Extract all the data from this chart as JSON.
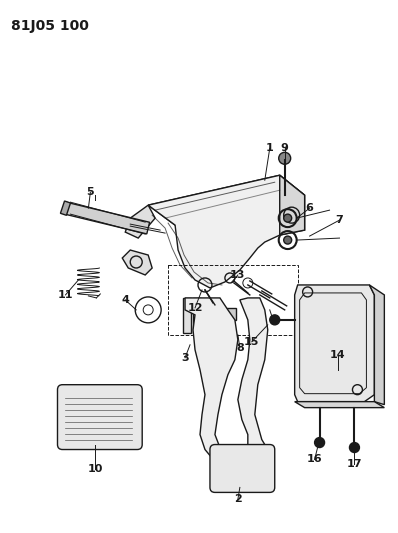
{
  "title": "81J05 100",
  "background_color": "#ffffff",
  "line_color": "#1a1a1a",
  "title_fontsize": 10,
  "label_fontsize": 8,
  "fig_width": 3.98,
  "fig_height": 5.33,
  "dpi": 100
}
